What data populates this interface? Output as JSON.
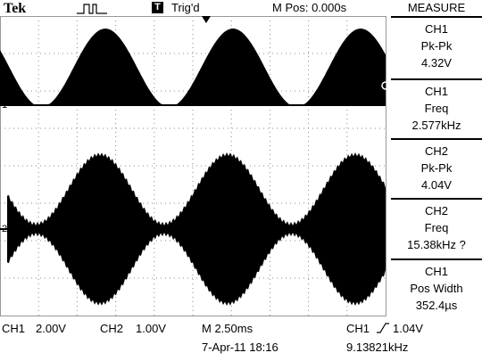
{
  "header": {
    "brand": "Tek",
    "trigger_icon": "T",
    "trigger_status": "Trig'd",
    "position": "M Pos: 0.000s",
    "menu_title": "MEASURE"
  },
  "measurements": [
    {
      "source": "CH1",
      "label": "Pk-Pk",
      "value": "4.32V"
    },
    {
      "source": "CH1",
      "label": "Freq",
      "value": "2.577kHz"
    },
    {
      "source": "CH2",
      "label": "Pk-Pk",
      "value": "4.04V"
    },
    {
      "source": "CH2",
      "label": "Freq",
      "value": "15.38kHz ?"
    },
    {
      "source": "CH1",
      "label": "Pos Width",
      "value": "352.4µs"
    }
  ],
  "markers": {
    "ch1": "1",
    "ch2": "2"
  },
  "footer": {
    "ch1": "CH1",
    "ch1_scale": "2.00V",
    "ch2": "CH2",
    "ch2_scale": "1.00V",
    "timebase": "M 2.50ms",
    "trigger_source": "CH1",
    "trigger_level": "1.04V",
    "date": "7-Apr-11 18:16",
    "frequency": "9.13821kHz"
  }
}
